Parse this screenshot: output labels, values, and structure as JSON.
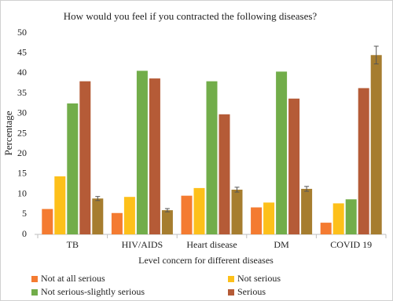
{
  "chart_data": {
    "type": "bar",
    "title": "How would you feel if you contracted the following diseases?",
    "x_label": "Level concern for different diseases",
    "y_label": "Percentage",
    "categories": [
      "TB",
      "HIV/AIDS",
      "Heart disease",
      "DM",
      "COVID 19"
    ],
    "series": [
      {
        "name": "Not  at all serious",
        "color": "#f47b31",
        "values": [
          6.3,
          5.3,
          9.6,
          6.7,
          2.9
        ]
      },
      {
        "name": "Not serious",
        "color": "#fdc01a",
        "values": [
          14.4,
          9.3,
          11.5,
          7.9,
          7.7
        ]
      },
      {
        "name": "Not serious-slightly serious",
        "color": "#72ad4a",
        "values": [
          32.5,
          40.6,
          38,
          40.4,
          8.7
        ]
      },
      {
        "name": "Serious",
        "color": "#b55b37",
        "values": [
          38,
          38.7,
          29.8,
          33.7,
          36.3
        ]
      },
      {
        "name": null,
        "color": "#a67d2f",
        "values": [
          8.9,
          6,
          11.1,
          11.3,
          44.5
        ],
        "errors": [
          0.5,
          0.4,
          0.6,
          0.6,
          2.2
        ]
      }
    ],
    "ylim": [
      0,
      50
    ],
    "yticks": [
      0,
      5,
      10,
      15,
      20,
      25,
      30,
      35,
      40,
      45,
      50
    ],
    "grid": false,
    "legend": "bottom"
  }
}
